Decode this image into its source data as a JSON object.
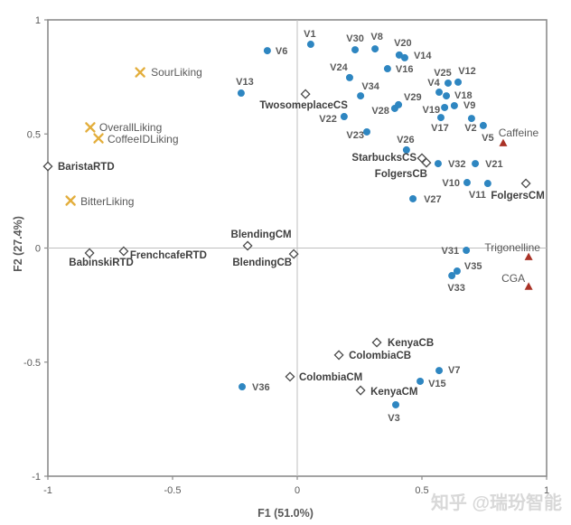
{
  "page": {
    "watermark": "知乎 @瑞玢智能"
  },
  "chart_data": {
    "type": "scatter",
    "title": "",
    "xlabel": "F1 (51.0%)",
    "ylabel": "F2 (27.4%)",
    "xlim": [
      -1,
      1
    ],
    "ylim": [
      -1,
      1
    ],
    "xticks": [
      "-1",
      "-0.5",
      "0",
      "0.5",
      "1"
    ],
    "yticks": [
      "1",
      "0.5",
      "0",
      "-0.5",
      "-1"
    ],
    "grid": false,
    "legend": "none",
    "colors": {
      "dot": "#2E86C1",
      "liking": "#E3AE3C",
      "product_stroke": "#4A4A4A",
      "product_fill": "#FFFFFF",
      "compound": "#A93226",
      "axis_border": "#8C8C8C",
      "center_line": "#BFBFBF",
      "tick_text": "#595959",
      "label_text": "#595959",
      "product_text": "#3F3F3F",
      "watermark": "#D8D8D8"
    },
    "series": [
      {
        "name": "variables",
        "marker": "circle",
        "font_size": 11,
        "font_weight": 600,
        "points": [
          {
            "label": "V1",
            "x": 0.054,
            "y": 0.893,
            "dx": -1,
            "dy": -8,
            "anchor": "middle"
          },
          {
            "label": "V6",
            "x": -0.12,
            "y": 0.865,
            "dx": 9,
            "dy": 4,
            "anchor": "start"
          },
          {
            "label": "V30",
            "x": 0.232,
            "y": 0.869,
            "dx": 0,
            "dy": -9,
            "anchor": "middle"
          },
          {
            "label": "V8",
            "x": 0.312,
            "y": 0.873,
            "dx": 2,
            "dy": -10,
            "anchor": "middle"
          },
          {
            "label": "V20",
            "x": 0.409,
            "y": 0.846,
            "dx": 4,
            "dy": -10,
            "anchor": "middle"
          },
          {
            "label": "V14",
            "x": 0.431,
            "y": 0.834,
            "dx": 10,
            "dy": 1,
            "anchor": "start"
          },
          {
            "label": "V24",
            "x": 0.21,
            "y": 0.747,
            "dx": -12,
            "dy": -8,
            "anchor": "middle"
          },
          {
            "label": "V16",
            "x": 0.362,
            "y": 0.786,
            "dx": 9,
            "dy": 4,
            "anchor": "start"
          },
          {
            "label": "V13",
            "x": -0.225,
            "y": 0.679,
            "dx": 4,
            "dy": -9,
            "anchor": "middle"
          },
          {
            "label": "V34",
            "x": 0.254,
            "y": 0.667,
            "dx": 11,
            "dy": -7,
            "anchor": "middle"
          },
          {
            "label": "V25",
            "x": 0.605,
            "y": 0.723,
            "dx": -6,
            "dy": -8,
            "anchor": "middle"
          },
          {
            "label": "V12",
            "x": 0.645,
            "y": 0.727,
            "dx": 10,
            "dy": -9,
            "anchor": "middle"
          },
          {
            "label": "V4",
            "x": 0.569,
            "y": 0.683,
            "dx": -6,
            "dy": -7,
            "anchor": "middle"
          },
          {
            "label": "V18",
            "x": 0.598,
            "y": 0.667,
            "dx": 9,
            "dy": 3,
            "anchor": "start"
          },
          {
            "label": "V29",
            "x": 0.406,
            "y": 0.628,
            "dx": 6,
            "dy": -5,
            "anchor": "start"
          },
          {
            "label": "V28",
            "x": 0.391,
            "y": 0.612,
            "dx": -6,
            "dy": 6,
            "anchor": "end"
          },
          {
            "label": "V19",
            "x": 0.591,
            "y": 0.616,
            "dx": -5,
            "dy": 6,
            "anchor": "end"
          },
          {
            "label": "V9",
            "x": 0.63,
            "y": 0.624,
            "dx": 10,
            "dy": 3,
            "anchor": "start"
          },
          {
            "label": "V17",
            "x": 0.576,
            "y": 0.572,
            "dx": -1,
            "dy": 15,
            "anchor": "middle"
          },
          {
            "label": "V2",
            "x": 0.699,
            "y": 0.568,
            "dx": -1,
            "dy": 14,
            "anchor": "middle"
          },
          {
            "label": "V5",
            "x": 0.746,
            "y": 0.537,
            "dx": 5,
            "dy": 17,
            "anchor": "middle"
          },
          {
            "label": "V22",
            "x": 0.188,
            "y": 0.576,
            "dx": -8,
            "dy": 6,
            "anchor": "end"
          },
          {
            "label": "V23",
            "x": 0.279,
            "y": 0.509,
            "dx": -3,
            "dy": 7,
            "anchor": "end"
          },
          {
            "label": "V26",
            "x": 0.438,
            "y": 0.43,
            "dx": -1,
            "dy": -8,
            "anchor": "middle"
          },
          {
            "label": "V32",
            "x": 0.565,
            "y": 0.37,
            "dx": 11,
            "dy": 4,
            "anchor": "start"
          },
          {
            "label": "V21",
            "x": 0.714,
            "y": 0.37,
            "dx": 11,
            "dy": 4,
            "anchor": "start"
          },
          {
            "label": "V10",
            "x": 0.681,
            "y": 0.287,
            "dx": -8,
            "dy": 4,
            "anchor": "end"
          },
          {
            "label": "V11",
            "x": 0.764,
            "y": 0.283,
            "dx": -2,
            "dy": 16,
            "anchor": "end"
          },
          {
            "label": "V27",
            "x": 0.464,
            "y": 0.216,
            "dx": 12,
            "dy": 4,
            "anchor": "start"
          },
          {
            "label": "V31",
            "x": 0.678,
            "y": -0.01,
            "dx": -8,
            "dy": 4,
            "anchor": "end"
          },
          {
            "label": "V35",
            "x": 0.641,
            "y": -0.101,
            "dx": 8,
            "dy": -2,
            "anchor": "start"
          },
          {
            "label": "V33",
            "x": 0.62,
            "y": -0.121,
            "dx": 5,
            "dy": 17,
            "anchor": "middle"
          },
          {
            "label": "V7",
            "x": 0.569,
            "y": -0.537,
            "dx": 10,
            "dy": 3,
            "anchor": "start"
          },
          {
            "label": "V15",
            "x": 0.493,
            "y": -0.584,
            "dx": 9,
            "dy": 6,
            "anchor": "start"
          },
          {
            "label": "V3",
            "x": 0.395,
            "y": -0.687,
            "dx": -2,
            "dy": 18,
            "anchor": "middle"
          },
          {
            "label": "V36",
            "x": -0.221,
            "y": -0.608,
            "dx": 11,
            "dy": 4,
            "anchor": "start"
          }
        ]
      },
      {
        "name": "liking-attributes",
        "marker": "x",
        "font_size": 12,
        "font_weight": 400,
        "points": [
          {
            "label": "SourLiking",
            "x": -0.63,
            "y": 0.77,
            "dx": 12,
            "dy": 4,
            "anchor": "start"
          },
          {
            "label": "OverallLiking",
            "x": -0.83,
            "y": 0.529,
            "dx": 10,
            "dy": 4,
            "anchor": "start"
          },
          {
            "label": "CoffeeIDLiking",
            "x": -0.797,
            "y": 0.481,
            "dx": 10,
            "dy": 5,
            "anchor": "start"
          },
          {
            "label": "BitterLiking",
            "x": -0.909,
            "y": 0.208,
            "dx": 11,
            "dy": 5,
            "anchor": "start"
          }
        ]
      },
      {
        "name": "products",
        "marker": "diamond",
        "font_size": 11.5,
        "font_weight": 700,
        "points": [
          {
            "label": "BaristaRTD",
            "x": -1.0,
            "y": 0.358,
            "dx": 11,
            "dy": 4,
            "anchor": "start"
          },
          {
            "label": "TwosomeplaceCS",
            "x": 0.033,
            "y": 0.675,
            "dx": -2,
            "dy": 16,
            "anchor": "middle"
          },
          {
            "label": "StarbucksCS",
            "x": 0.5,
            "y": 0.394,
            "dx": -6,
            "dy": 3,
            "anchor": "end"
          },
          {
            "label": "FolgersCB",
            "x": 0.518,
            "y": 0.374,
            "dx": 1,
            "dy": 16,
            "anchor": "end"
          },
          {
            "label": "FolgersCM",
            "x": 0.917,
            "y": 0.283,
            "dx": -9,
            "dy": 17,
            "anchor": "middle"
          },
          {
            "label": "BlendingCM",
            "x": -0.199,
            "y": 0.01,
            "dx": 15,
            "dy": -9,
            "anchor": "middle"
          },
          {
            "label": "BlendingCB",
            "x": -0.014,
            "y": -0.026,
            "dx": -2,
            "dy": 13,
            "anchor": "end"
          },
          {
            "label": "BabinskiRTD",
            "x": -0.833,
            "y": -0.022,
            "dx": 13,
            "dy": 14,
            "anchor": "middle"
          },
          {
            "label": "FrenchcafeRTD",
            "x": -0.696,
            "y": -0.014,
            "dx": 7,
            "dy": 8,
            "anchor": "start"
          },
          {
            "label": "KenyaCB",
            "x": 0.319,
            "y": -0.414,
            "dx": 12,
            "dy": 4,
            "anchor": "start"
          },
          {
            "label": "ColombiaCB",
            "x": 0.167,
            "y": -0.469,
            "dx": 11,
            "dy": 4,
            "anchor": "start"
          },
          {
            "label": "ColombiaCM",
            "x": -0.029,
            "y": -0.564,
            "dx": 10,
            "dy": 4,
            "anchor": "start"
          },
          {
            "label": "KenyaCM",
            "x": 0.254,
            "y": -0.624,
            "dx": 11,
            "dy": 5,
            "anchor": "start"
          }
        ]
      },
      {
        "name": "compounds",
        "marker": "triangle",
        "font_size": 12,
        "font_weight": 400,
        "points": [
          {
            "label": "Caffeine",
            "x": 0.826,
            "y": 0.461,
            "dx": 17,
            "dy": -7,
            "anchor": "middle"
          },
          {
            "label": "Trigonelline",
            "x": 0.928,
            "y": -0.038,
            "dx": -18,
            "dy": -6,
            "anchor": "middle"
          },
          {
            "label": "CGA",
            "x": 0.928,
            "y": -0.168,
            "dx": -17,
            "dy": -5,
            "anchor": "middle"
          }
        ]
      }
    ]
  }
}
